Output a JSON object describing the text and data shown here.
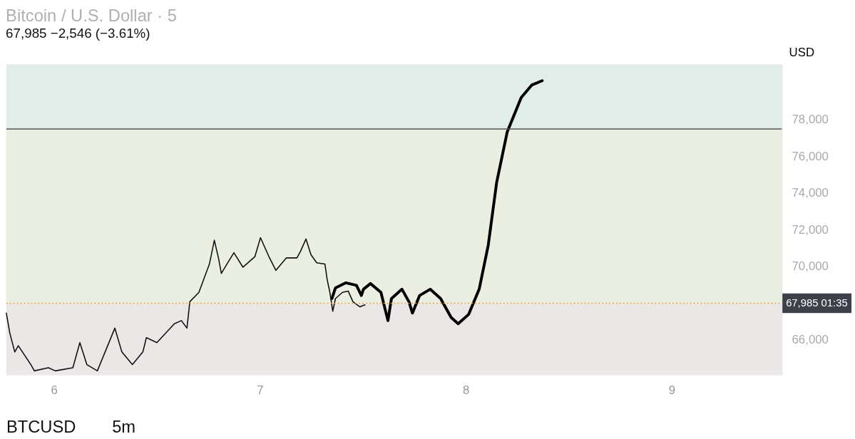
{
  "chart_data": {
    "type": "line",
    "title": "Bitcoin / U.S. Dollar · 5",
    "subtitle": "67,985  −2,546 (−3.61%)",
    "ylabel": "USD",
    "xlim": [
      5.769,
      9.534
    ],
    "xticks": [
      6,
      7,
      8,
      9
    ],
    "ylim": [
      64100,
      81000
    ],
    "yticks": [
      {
        "value": 66000,
        "label": "66,000"
      },
      {
        "value": 70000,
        "label": "70,000"
      },
      {
        "value": 72000,
        "label": "72,000"
      },
      {
        "value": 74000,
        "label": "74,000"
      },
      {
        "value": 76000,
        "label": "76,000"
      },
      {
        "value": 78000,
        "label": "78,000"
      }
    ],
    "grid": false,
    "marker": "none",
    "line_style": "solid",
    "series": [
      {
        "color": "#111111",
        "x": [
          5.769,
          5.786,
          5.81,
          5.827,
          5.888,
          5.905,
          5.973,
          6.007,
          6.092,
          6.126,
          6.16,
          6.211,
          6.296,
          6.33,
          6.381,
          6.432,
          6.449,
          6.5,
          6.585,
          6.619,
          6.646,
          6.66,
          6.704,
          6.755,
          6.779,
          6.799,
          6.813,
          6.84,
          6.874,
          6.918,
          6.976,
          7.003,
          7.044,
          7.078,
          7.129,
          7.18,
          7.197,
          7.224,
          7.248,
          7.276,
          7.316,
          7.327,
          7.34,
          7.354,
          7.367,
          7.401,
          7.429,
          7.452,
          7.486,
          7.51
        ],
        "values": [
          67450,
          66350,
          65330,
          65670,
          64640,
          64300,
          64470,
          64300,
          64470,
          65840,
          64640,
          64300,
          66630,
          65330,
          64640,
          65330,
          66110,
          65840,
          66870,
          67040,
          66630,
          68070,
          68580,
          70120,
          71420,
          70460,
          69610,
          70120,
          70740,
          69950,
          70530,
          71560,
          70530,
          69780,
          70460,
          70460,
          70810,
          71490,
          70640,
          70190,
          70120,
          69270,
          68580,
          67550,
          68240,
          68580,
          68650,
          68070,
          67790,
          67900
        ]
      },
      {
        "color": "#000000",
        "x": [
          7.35,
          7.367,
          7.418,
          7.469,
          7.493,
          7.503,
          7.537,
          7.588,
          7.622,
          7.639,
          7.69,
          7.724,
          7.741,
          7.776,
          7.827,
          7.878,
          7.929,
          7.963,
          8.014,
          8.065,
          8.109,
          8.15,
          8.201,
          8.269,
          8.32,
          8.371
        ],
        "values": [
          68240,
          68820,
          69100,
          68960,
          68410,
          68750,
          69060,
          68580,
          67040,
          68240,
          68750,
          68070,
          67450,
          68410,
          68750,
          68240,
          67210,
          66870,
          67380,
          68750,
          71150,
          74580,
          77320,
          79200,
          79880,
          80120
        ]
      }
    ],
    "ref_lines": [
      {
        "axis": "y",
        "value": 67985,
        "label": "67,985 01:35",
        "color": "#f0a030",
        "line_style": "dotted"
      },
      {
        "axis": "y",
        "value": 77490,
        "color": "#555555",
        "line_style": "solid"
      }
    ],
    "bands": [
      {
        "axis": "y",
        "from": 77490,
        "to": 81000,
        "color": "#e0ede9"
      },
      {
        "axis": "y",
        "from": 67985,
        "to": 77490,
        "color": "#ebefe2"
      },
      {
        "axis": "y",
        "from": 64100,
        "to": 67985,
        "color": "#ebe7e7"
      }
    ],
    "annotations": [
      "BTCUSD",
      "5m"
    ]
  }
}
